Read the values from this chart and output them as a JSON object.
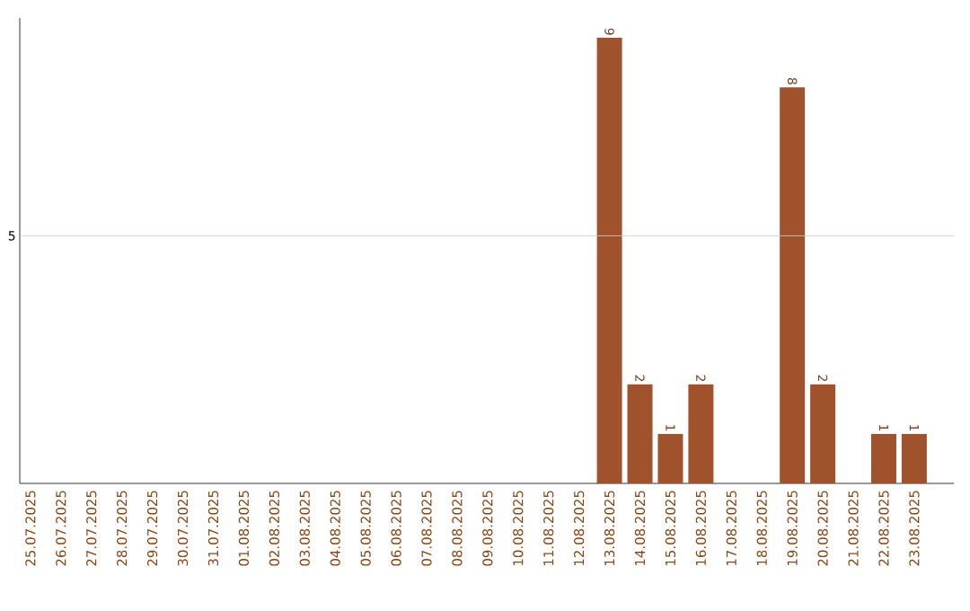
{
  "chart_data": {
    "type": "bar",
    "categories": [
      "25.07.2025",
      "26.07.2025",
      "27.07.2025",
      "28.07.2025",
      "29.07.2025",
      "30.07.2025",
      "31.07.2025",
      "01.08.2025",
      "02.08.2025",
      "03.08.2025",
      "04.08.2025",
      "05.08.2025",
      "06.08.2025",
      "07.08.2025",
      "08.08.2025",
      "09.08.2025",
      "10.08.2025",
      "11.08.2025",
      "12.08.2025",
      "13.08.2025",
      "14.08.2025",
      "15.08.2025",
      "16.08.2025",
      "17.08.2025",
      "18.08.2025",
      "19.08.2025",
      "20.08.2025",
      "21.08.2025",
      "22.08.2025",
      "23.08.2025"
    ],
    "values": [
      null,
      null,
      null,
      null,
      null,
      null,
      null,
      null,
      null,
      null,
      null,
      null,
      null,
      null,
      null,
      null,
      null,
      null,
      null,
      9,
      2,
      1,
      2,
      null,
      null,
      8,
      2,
      null,
      1,
      1
    ],
    "data_labels": true,
    "color": "#a0522d",
    "ylim": [
      0,
      9.4
    ],
    "ref_lines": [
      {
        "axis": "y",
        "value": 5,
        "label": "5",
        "color": "#cccccc"
      }
    ]
  }
}
